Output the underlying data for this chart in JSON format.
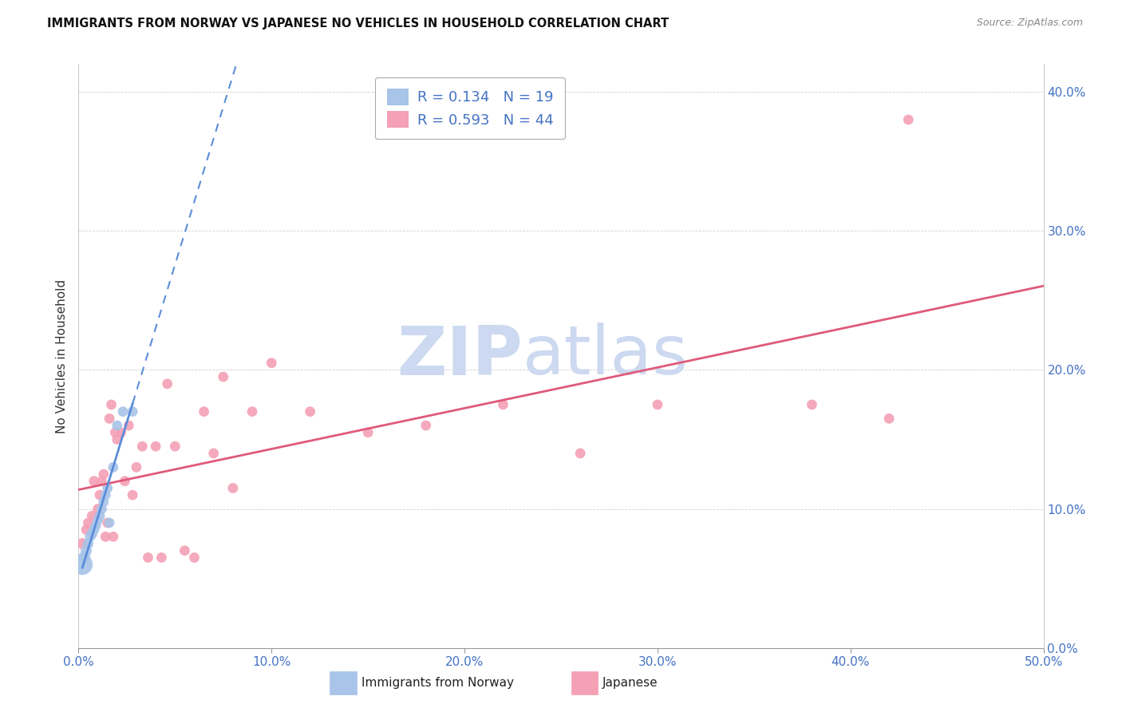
{
  "title": "IMMIGRANTS FROM NORWAY VS JAPANESE NO VEHICLES IN HOUSEHOLD CORRELATION CHART",
  "source": "Source: ZipAtlas.com",
  "ylabel": "No Vehicles in Household",
  "norway_R": 0.134,
  "norway_N": 19,
  "japanese_R": 0.593,
  "japanese_N": 44,
  "norway_color": "#a8c4e8",
  "japanese_color": "#f4a0b5",
  "norway_line_color": "#5b8dd9",
  "japanese_line_color": "#e05a7a",
  "watermark_zip": "ZIP",
  "watermark_atlas": "atlas",
  "watermark_color": "#ccd9f0",
  "xlim": [
    0.0,
    0.5
  ],
  "ylim": [
    0.0,
    0.42
  ],
  "x_ticks": [
    0.0,
    0.1,
    0.2,
    0.3,
    0.4,
    0.5
  ],
  "x_tick_labels": [
    "0.0%",
    "10.0%",
    "20.0%",
    "30.0%",
    "40.0%",
    "50.0%"
  ],
  "y_ticks": [
    0.0,
    0.1,
    0.2,
    0.3,
    0.4
  ],
  "y_tick_labels_right": [
    "0.0%",
    "10.0%",
    "20.0%",
    "30.0%",
    "40.0%"
  ],
  "norway_x": [
    0.002,
    0.003,
    0.004,
    0.005,
    0.006,
    0.007,
    0.008,
    0.009,
    0.01,
    0.011,
    0.012,
    0.013,
    0.014,
    0.015,
    0.016,
    0.018,
    0.02,
    0.023,
    0.028
  ],
  "norway_y": [
    0.06,
    0.065,
    0.07,
    0.075,
    0.08,
    0.082,
    0.085,
    0.088,
    0.092,
    0.095,
    0.1,
    0.105,
    0.11,
    0.115,
    0.09,
    0.13,
    0.16,
    0.17,
    0.17
  ],
  "norway_sizes": [
    350,
    120,
    100,
    90,
    90,
    90,
    85,
    85,
    85,
    85,
    85,
    85,
    85,
    85,
    85,
    85,
    85,
    85,
    85
  ],
  "japanese_x": [
    0.002,
    0.004,
    0.005,
    0.007,
    0.008,
    0.01,
    0.011,
    0.012,
    0.013,
    0.014,
    0.015,
    0.016,
    0.017,
    0.018,
    0.019,
    0.02,
    0.022,
    0.024,
    0.026,
    0.028,
    0.03,
    0.033,
    0.036,
    0.04,
    0.043,
    0.046,
    0.05,
    0.055,
    0.06,
    0.065,
    0.07,
    0.075,
    0.08,
    0.09,
    0.1,
    0.12,
    0.15,
    0.18,
    0.22,
    0.26,
    0.3,
    0.38,
    0.42,
    0.43
  ],
  "japanese_y": [
    0.075,
    0.085,
    0.09,
    0.095,
    0.12,
    0.1,
    0.11,
    0.12,
    0.125,
    0.08,
    0.09,
    0.165,
    0.175,
    0.08,
    0.155,
    0.15,
    0.155,
    0.12,
    0.16,
    0.11,
    0.13,
    0.145,
    0.065,
    0.145,
    0.065,
    0.19,
    0.145,
    0.07,
    0.065,
    0.17,
    0.14,
    0.195,
    0.115,
    0.17,
    0.205,
    0.17,
    0.155,
    0.16,
    0.175,
    0.14,
    0.175,
    0.175,
    0.165,
    0.38
  ],
  "japanese_sizes": [
    100,
    85,
    85,
    85,
    85,
    85,
    85,
    85,
    85,
    85,
    85,
    85,
    85,
    85,
    85,
    85,
    85,
    85,
    85,
    85,
    85,
    85,
    85,
    85,
    85,
    85,
    85,
    85,
    85,
    85,
    85,
    85,
    85,
    85,
    85,
    85,
    85,
    85,
    85,
    85,
    85,
    85,
    85,
    85
  ]
}
